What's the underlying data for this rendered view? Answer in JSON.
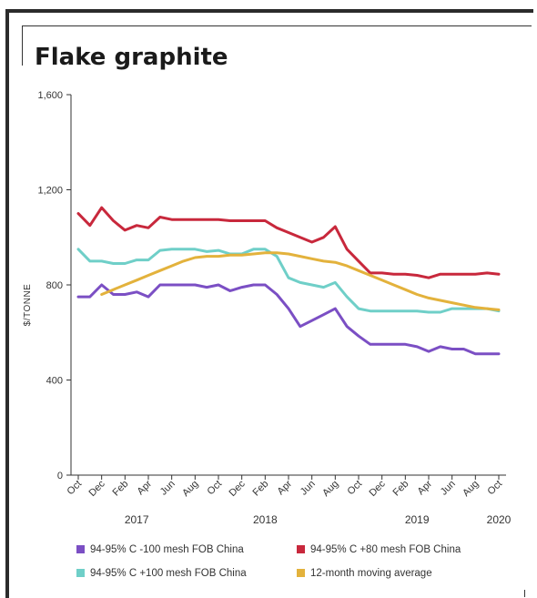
{
  "chart_data": {
    "type": "line",
    "title": "Flake graphite",
    "ylabel": "$/TONNE",
    "xlabel": "",
    "ylim": [
      0,
      1600
    ],
    "y_ticks": [
      "0",
      "400",
      "800",
      "1,200",
      "1,600"
    ],
    "y_tick_values": [
      0,
      400,
      800,
      1200,
      1600
    ],
    "x_tick_labels": [
      "Oct",
      "Dec",
      "Feb",
      "Apr",
      "Jun",
      "Aug",
      "Oct",
      "Dec",
      "Feb",
      "Apr",
      "Jun",
      "Aug",
      "Oct",
      "Dec",
      "Feb",
      "Apr",
      "Jun",
      "Aug",
      "Oct"
    ],
    "x_tick_index": [
      0,
      2,
      4,
      6,
      8,
      10,
      12,
      14,
      16,
      18,
      20,
      22,
      24,
      26,
      28,
      30,
      32,
      34,
      36
    ],
    "year_labels": [
      {
        "label": "2017",
        "index": 5
      },
      {
        "label": "2018",
        "index": 16
      },
      {
        "label": "2019",
        "index": 29
      },
      {
        "label": "2020",
        "index": 36
      }
    ],
    "x": [
      "Oct 2016",
      "Nov 2016",
      "Dec 2016",
      "Jan 2017",
      "Feb 2017",
      "Mar 2017",
      "Apr 2017",
      "May 2017",
      "Jun 2017",
      "Jul 2017",
      "Aug 2017",
      "Sep 2017",
      "Oct 2017",
      "Nov 2017",
      "Dec 2017",
      "Jan 2018",
      "Feb 2018",
      "Mar 2018",
      "Apr 2018",
      "May 2018",
      "Jun 2018",
      "Jul 2018",
      "Aug 2018",
      "Sep 2018",
      "Oct 2018",
      "Nov 2018",
      "Dec 2018",
      "Jan 2019",
      "Feb 2019",
      "Mar 2019",
      "Apr 2019",
      "May 2019",
      "Jun 2019",
      "Jul 2019",
      "Aug 2019",
      "Sep 2019",
      "Oct 2019"
    ],
    "series": [
      {
        "name": "94-95% C -100 mesh FOB China",
        "color": "#7b4fc4",
        "values": [
          750,
          750,
          800,
          760,
          760,
          770,
          750,
          800,
          800,
          800,
          800,
          790,
          800,
          775,
          790,
          800,
          800,
          760,
          700,
          625,
          650,
          675,
          700,
          625,
          585,
          550,
          550,
          550,
          550,
          540,
          520,
          540,
          530,
          530,
          510,
          510,
          510
        ]
      },
      {
        "name": "94-95% C +80 mesh FOB China",
        "color": "#c8283c",
        "values": [
          1100,
          1050,
          1125,
          1070,
          1030,
          1050,
          1040,
          1085,
          1075,
          1075,
          1075,
          1075,
          1075,
          1070,
          1070,
          1070,
          1070,
          1040,
          1020,
          1000,
          980,
          1000,
          1045,
          950,
          900,
          850,
          850,
          845,
          845,
          840,
          830,
          845,
          845,
          845,
          845,
          850,
          845
        ]
      },
      {
        "name": "94-95% C +100 mesh FOB China",
        "color": "#6fcfc8",
        "values": [
          950,
          900,
          900,
          890,
          890,
          905,
          905,
          945,
          950,
          950,
          950,
          940,
          945,
          930,
          930,
          950,
          950,
          920,
          830,
          810,
          800,
          790,
          810,
          750,
          700,
          690,
          690,
          690,
          690,
          690,
          685,
          685,
          700,
          700,
          700,
          700,
          690
        ]
      },
      {
        "name": "12-month moving average",
        "color": "#e3b23c",
        "values": [
          null,
          null,
          760,
          780,
          800,
          820,
          840,
          860,
          880,
          900,
          915,
          920,
          920,
          925,
          925,
          930,
          935,
          935,
          930,
          920,
          910,
          900,
          895,
          880,
          860,
          840,
          820,
          800,
          780,
          760,
          745,
          735,
          725,
          715,
          705,
          700,
          695
        ]
      }
    ],
    "grid": false,
    "legend_position": "bottom"
  }
}
